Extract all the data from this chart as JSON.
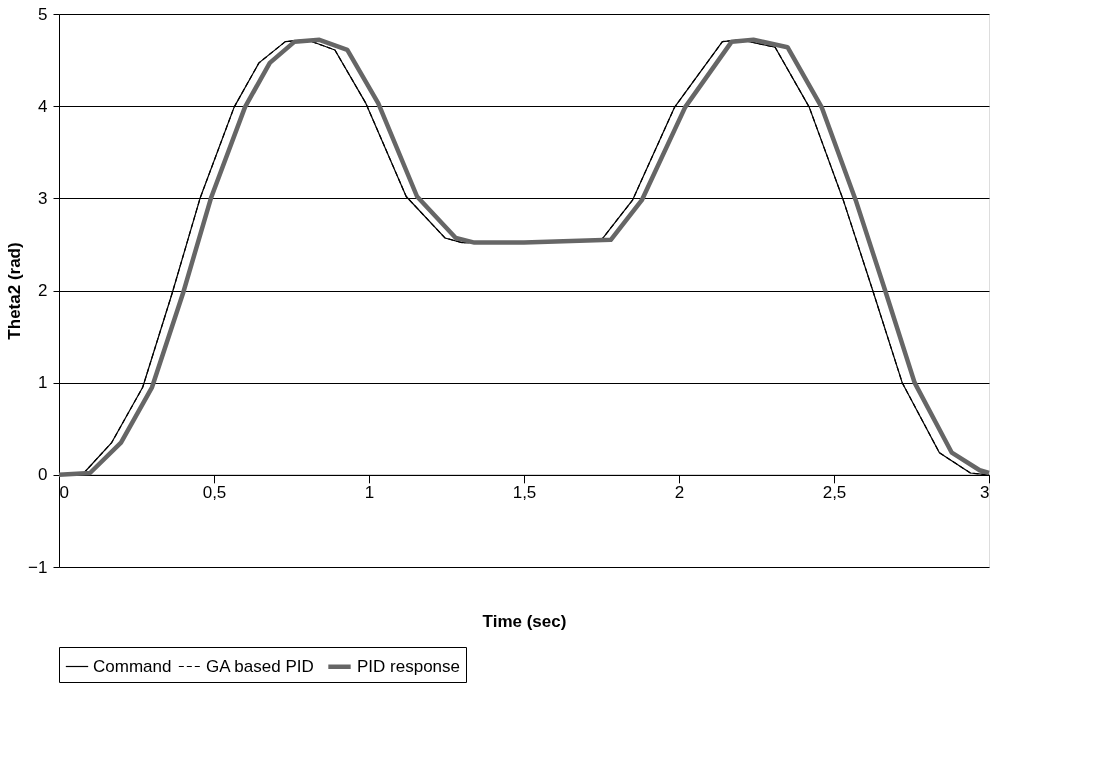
{
  "chart_data": {
    "type": "line",
    "xlabel": "Time (sec)",
    "ylabel": "Theta2 (rad)",
    "xlim": [
      0,
      3
    ],
    "ylim": [
      -1,
      5
    ],
    "xticks": [
      0,
      {
        "value": 0.5,
        "label": "0,5"
      },
      1,
      {
        "value": 1.5,
        "label": "1,5"
      },
      2,
      {
        "value": 2.5,
        "label": "2,5"
      },
      3
    ],
    "yticks": [
      -1,
      0,
      1,
      2,
      3,
      4,
      5
    ],
    "grid": "y",
    "legend": "bottom",
    "marker": "none",
    "series": [
      {
        "name": "Command",
        "color": "#000000",
        "line_style": "solid",
        "x": [
          0,
          0.08,
          0.17,
          0.27,
          0.365,
          0.455,
          0.565,
          0.645,
          0.73,
          0.8,
          0.89,
          0.99,
          1.12,
          1.245,
          1.3,
          1.5,
          1.75,
          1.85,
          1.986,
          2.14,
          2.2,
          2.31,
          2.42,
          2.53,
          2.625,
          2.72,
          2.84,
          2.94,
          3.0
        ],
        "values": [
          0,
          0.02,
          0.35,
          0.95,
          1.97,
          3.0,
          3.99,
          4.47,
          4.7,
          4.72,
          4.61,
          4.03,
          3.02,
          2.57,
          2.52,
          2.52,
          2.55,
          2.98,
          3.99,
          4.7,
          4.72,
          4.64,
          3.99,
          2.98,
          2.0,
          1.0,
          0.24,
          0.02,
          0
        ]
      },
      {
        "name": "GA based PID",
        "color": "#000000",
        "line_style": "dashed",
        "x": [
          0,
          0.08,
          0.17,
          0.27,
          0.365,
          0.455,
          0.565,
          0.645,
          0.73,
          0.8,
          0.89,
          0.99,
          1.12,
          1.245,
          1.3,
          1.5,
          1.75,
          1.85,
          1.986,
          2.14,
          2.2,
          2.31,
          2.42,
          2.53,
          2.625,
          2.72,
          2.84,
          2.94,
          3.0
        ],
        "values": [
          0,
          0.02,
          0.35,
          0.95,
          1.97,
          3.0,
          3.99,
          4.47,
          4.7,
          4.72,
          4.61,
          4.03,
          3.02,
          2.57,
          2.52,
          2.52,
          2.55,
          2.98,
          3.99,
          4.7,
          4.72,
          4.64,
          3.99,
          2.98,
          2.0,
          1.0,
          0.24,
          0.02,
          0
        ]
      },
      {
        "name": "PID response",
        "color": "#666666",
        "line_style": "solid",
        "x": [
          0,
          0.1,
          0.2,
          0.3,
          0.4,
          0.49,
          0.6,
          0.68,
          0.76,
          0.84,
          0.93,
          1.03,
          1.155,
          1.28,
          1.34,
          1.5,
          1.78,
          1.88,
          2.02,
          2.17,
          2.24,
          2.35,
          2.46,
          2.57,
          2.665,
          2.76,
          2.88,
          2.97,
          3.0
        ],
        "values": [
          0,
          0.02,
          0.35,
          0.95,
          1.97,
          3.0,
          3.99,
          4.47,
          4.7,
          4.72,
          4.61,
          4.03,
          3.02,
          2.57,
          2.52,
          2.52,
          2.55,
          2.98,
          3.99,
          4.7,
          4.72,
          4.64,
          3.99,
          2.98,
          2.0,
          1.0,
          0.24,
          0.05,
          0.02
        ]
      }
    ]
  }
}
